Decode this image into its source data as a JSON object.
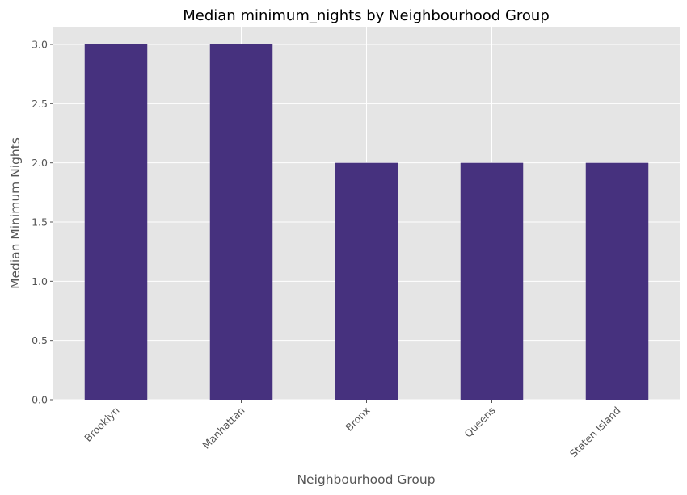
{
  "chart_data": {
    "type": "bar",
    "title": "Median minimum_nights by Neighbourhood Group",
    "xlabel": "Neighbourhood Group",
    "ylabel": "Median Minimum Nights",
    "categories": [
      "Brooklyn",
      "Manhattan",
      "Bronx",
      "Queens",
      "Staten Island"
    ],
    "values": [
      3.0,
      3.0,
      2.0,
      2.0,
      2.0
    ],
    "ylim": [
      0,
      3.15
    ],
    "yticks": [
      "0.0",
      "0.5",
      "1.0",
      "1.5",
      "2.0",
      "2.5",
      "3.0"
    ],
    "grid": true,
    "legend": "none",
    "colors": {
      "bar": "#46317e",
      "plot_background": "#e5e5e5",
      "grid": "#ffffff",
      "text": "#555555"
    }
  }
}
